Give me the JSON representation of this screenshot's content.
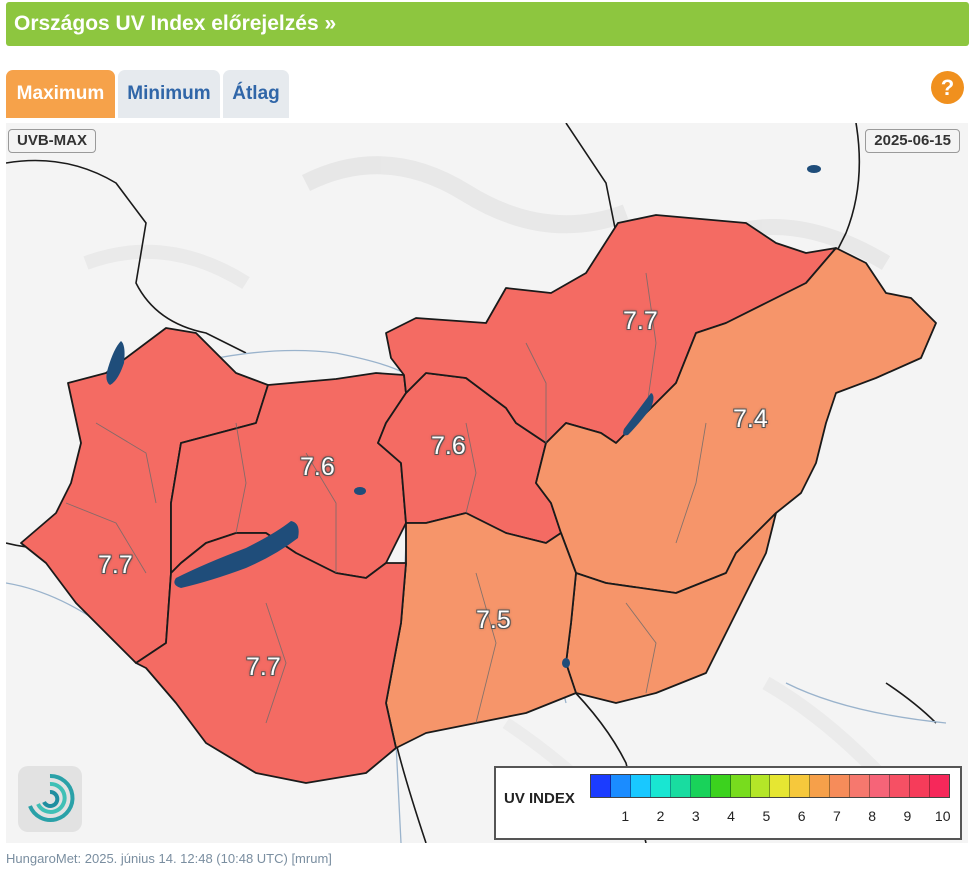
{
  "header": {
    "title": "Országos UV Index előrejelzés »"
  },
  "tabs": [
    {
      "label": "Maximum",
      "active": true
    },
    {
      "label": "Minimum",
      "active": false
    },
    {
      "label": "Átlag",
      "active": false
    }
  ],
  "help": {
    "label": "?"
  },
  "map": {
    "product_label": "UVB-MAX",
    "date_label": "2025-06-15",
    "region_values": [
      {
        "name": "northeast",
        "value": "7.7"
      },
      {
        "name": "east",
        "value": "7.4"
      },
      {
        "name": "north-central",
        "value": "7.6"
      },
      {
        "name": "central-west",
        "value": "7.6"
      },
      {
        "name": "west",
        "value": "7.7"
      },
      {
        "name": "southwest",
        "value": "7.7"
      },
      {
        "name": "south-central",
        "value": "7.5"
      }
    ],
    "colors": {
      "high_red": "#f46b63",
      "orange": "#f6956a",
      "water": "#1f4d7a",
      "border": "#1a1a1a"
    }
  },
  "legend": {
    "title": "UV INDEX",
    "ticks": [
      "1",
      "2",
      "3",
      "4",
      "5",
      "6",
      "7",
      "8",
      "9",
      "10"
    ],
    "colors": [
      "#1b3cff",
      "#1b8cff",
      "#19c8ff",
      "#19e6d2",
      "#19dca0",
      "#19d25a",
      "#3cd21e",
      "#78dc1e",
      "#b4e628",
      "#e6e632",
      "#f6c83c",
      "#f6a04a",
      "#f68c5a",
      "#f6786e",
      "#f66478",
      "#f65064",
      "#f63c5a",
      "#f6285a"
    ]
  },
  "footer": {
    "text": "HungaroMet: 2025. június 14. 12:48 (10:48  UTC)  [mrum]"
  }
}
